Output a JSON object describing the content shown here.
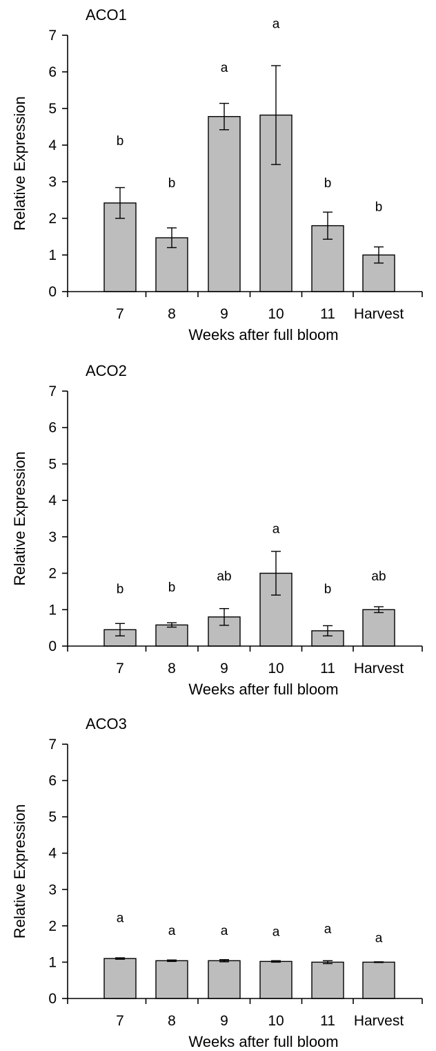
{
  "chart_data": [
    {
      "type": "bar",
      "title": "ACO1",
      "xlabel": "Weeks after full bloom",
      "ylabel": "Relative Expression",
      "ylim": [
        0,
        7
      ],
      "yticks": [
        "0",
        "1",
        "2",
        "3",
        "4",
        "5",
        "6",
        "7"
      ],
      "categories": [
        "7",
        "8",
        "9",
        "10",
        "11",
        "Harvest"
      ],
      "values": [
        2.42,
        1.47,
        4.78,
        4.82,
        1.8,
        1.0
      ],
      "errors": [
        0.42,
        0.27,
        0.36,
        1.35,
        0.37,
        0.22
      ],
      "significance_letters": [
        "b",
        "b",
        "a",
        "a",
        "b",
        "b"
      ],
      "letter_y": [
        4.0,
        2.85,
        6.0,
        7.2,
        2.85,
        2.2
      ],
      "colors": {
        "bar": "#bdbdbd",
        "axis": "#000000"
      },
      "grid": false
    },
    {
      "type": "bar",
      "title": "ACO2",
      "xlabel": "Weeks after full bloom",
      "ylabel": "Relative Expression",
      "ylim": [
        0,
        7
      ],
      "yticks": [
        "0",
        "1",
        "2",
        "3",
        "4",
        "5",
        "6",
        "7"
      ],
      "categories": [
        "7",
        "8",
        "9",
        "10",
        "11",
        "Harvest"
      ],
      "values": [
        0.45,
        0.58,
        0.8,
        2.0,
        0.42,
        1.0
      ],
      "errors": [
        0.17,
        0.06,
        0.23,
        0.6,
        0.14,
        0.08
      ],
      "significance_letters": [
        "b",
        "b",
        "ab",
        "a",
        "b",
        "ab"
      ],
      "letter_y": [
        1.45,
        1.5,
        1.8,
        3.1,
        1.45,
        1.8
      ],
      "colors": {
        "bar": "#bdbdbd",
        "axis": "#000000"
      },
      "grid": false
    },
    {
      "type": "bar",
      "title": "ACO3",
      "xlabel": "Weeks after full bloom",
      "ylabel": "Relative Expression",
      "ylim": [
        0,
        7
      ],
      "yticks": [
        "0",
        "1",
        "2",
        "3",
        "4",
        "5",
        "6",
        "7"
      ],
      "categories": [
        "7",
        "8",
        "9",
        "10",
        "11",
        "Harvest"
      ],
      "values": [
        1.1,
        1.04,
        1.04,
        1.02,
        1.0,
        1.0
      ],
      "errors": [
        0.02,
        0.02,
        0.03,
        0.02,
        0.04,
        0.01
      ],
      "significance_letters": [
        "a",
        "a",
        "a",
        "a",
        "a",
        "a"
      ],
      "letter_y": [
        2.1,
        1.75,
        1.75,
        1.72,
        1.8,
        1.55
      ],
      "colors": {
        "bar": "#bdbdbd",
        "axis": "#000000"
      },
      "grid": false
    }
  ]
}
